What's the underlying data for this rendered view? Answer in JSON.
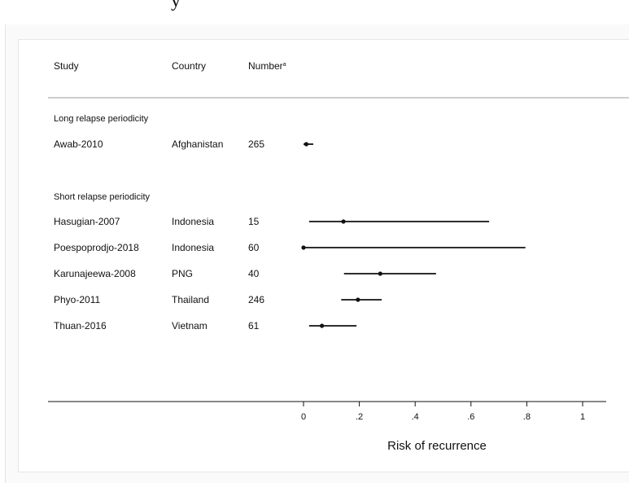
{
  "page": {
    "title_fragment": "y"
  },
  "table": {
    "headers": {
      "study": "Study",
      "country": "Country",
      "number": "Number",
      "number_superscript": "a"
    },
    "groups": [
      {
        "label": "Long relapse periodicity",
        "rows": [
          {
            "study": "Awab-2010",
            "country": "Afghanistan",
            "number": "265"
          }
        ]
      },
      {
        "label": "Short relapse periodicity",
        "rows": [
          {
            "study": "Hasugian-2007",
            "country": "Indonesia",
            "number": "15"
          },
          {
            "study": "Poespoprodjo-2018",
            "country": "Indonesia",
            "number": "60"
          },
          {
            "study": "Karunajeewa-2008",
            "country": "PNG",
            "number": "40"
          },
          {
            "study": "Phyo-2011",
            "country": "Thailand",
            "number": "246"
          },
          {
            "study": "Thuan-2016",
            "country": "Vietnam",
            "number": "61"
          }
        ]
      }
    ]
  },
  "chart_data": {
    "type": "forest",
    "xlabel": "Risk of recurrence",
    "xlim": [
      0,
      1
    ],
    "xticks": [
      0,
      0.2,
      0.4,
      0.6,
      0.8,
      1
    ],
    "xtick_labels": [
      "0",
      ".2",
      ".4",
      ".6",
      ".8",
      "1"
    ],
    "series": [
      {
        "name": "Long relapse periodicity",
        "points": [
          {
            "study": "Awab-2010",
            "estimate": 0.01,
            "lower": 0.0,
            "upper": 0.035
          }
        ]
      },
      {
        "name": "Short relapse periodicity",
        "points": [
          {
            "study": "Hasugian-2007",
            "estimate": 0.143,
            "lower": 0.02,
            "upper": 0.665
          },
          {
            "study": "Poespoprodjo-2018",
            "estimate": 0.0,
            "lower": 0.0,
            "upper": 0.795
          },
          {
            "study": "Karunajeewa-2008",
            "estimate": 0.275,
            "lower": 0.145,
            "upper": 0.475
          },
          {
            "study": "Phyo-2011",
            "estimate": 0.195,
            "lower": 0.135,
            "upper": 0.28
          },
          {
            "study": "Thuan-2016",
            "estimate": 0.066,
            "lower": 0.02,
            "upper": 0.19
          }
        ]
      }
    ]
  }
}
